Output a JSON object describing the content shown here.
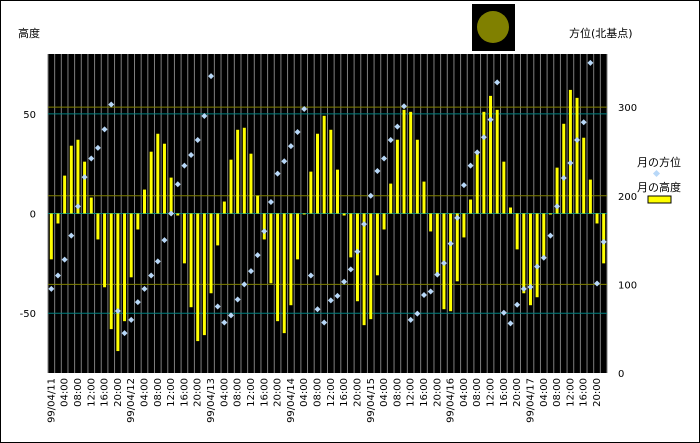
{
  "chart_data": {
    "type": "bar+scatter",
    "left_axis_label": "高度",
    "right_axis_label": "方位(北基点)",
    "left_ylim": [
      -80,
      80
    ],
    "left_ticks": [
      50,
      0,
      -50
    ],
    "right_ylim": [
      0,
      360
    ],
    "right_ticks": [
      300,
      200,
      100,
      0
    ],
    "legend": {
      "azimuth_label": "月の方位",
      "altitude_label": "月の高度"
    },
    "colors": {
      "plot_bg": "#000000",
      "bar": "#ffff00",
      "azimuth_point": "#b8d8f8",
      "gridline_vertical": "#7f7f7f",
      "gridline_olive": "#808000",
      "gridline_teal": "#008080",
      "moon_icon": "#808000"
    },
    "x_tick_labels": [
      "99/04/11",
      "04:00",
      "08:00",
      "12:00",
      "16:00",
      "20:00",
      "99/04/12",
      "04:00",
      "08:00",
      "12:00",
      "16:00",
      "20:00",
      "99/04/13",
      "04:00",
      "08:00",
      "12:00",
      "16:00",
      "20:00",
      "99/04/14",
      "04:00",
      "08:00",
      "12:00",
      "16:00",
      "20:00",
      "99/04/15",
      "04:00",
      "08:00",
      "12:00",
      "16:00",
      "20:00",
      "99/04/16",
      "04:00",
      "08:00",
      "12:00",
      "16:00",
      "20:00",
      "99/04/17",
      "04:00",
      "08:00",
      "12:00",
      "16:00",
      "20:00"
    ],
    "interval_hours": 2,
    "altitude_deg": [
      -23,
      -5,
      19,
      34,
      37,
      26,
      8,
      -13,
      -37,
      -58,
      -69,
      -54,
      -32,
      -8,
      12,
      31,
      40,
      35,
      18,
      -1,
      -25,
      -47,
      -64,
      -61,
      -40,
      -16,
      6,
      27,
      42,
      43,
      30,
      9,
      -13,
      -35,
      -54,
      -60,
      -46,
      -23,
      0,
      21,
      40,
      49,
      42,
      22,
      -1,
      -22,
      -44,
      -56,
      -53,
      -31,
      -8,
      15,
      37,
      52,
      51,
      37,
      16,
      -9,
      -31,
      -48,
      -49,
      -34,
      -12,
      7,
      31,
      51,
      59,
      52,
      26,
      3,
      -18,
      -40,
      -46,
      -42,
      -22,
      0,
      23,
      45,
      62,
      58,
      38,
      17,
      -5,
      -25
    ],
    "azimuth_deg": [
      95,
      110,
      128,
      155,
      188,
      221,
      242,
      254,
      275,
      303,
      70,
      45,
      60,
      80,
      95,
      110,
      126,
      150,
      180,
      213,
      234,
      246,
      263,
      290,
      335,
      75,
      57,
      65,
      83,
      100,
      115,
      133,
      160,
      193,
      225,
      239,
      256,
      272,
      298,
      110,
      72,
      57,
      82,
      87,
      103,
      117,
      137,
      168,
      200,
      228,
      242,
      263,
      278,
      301,
      60,
      67,
      88,
      92,
      111,
      124,
      146,
      175,
      212,
      234,
      249,
      266,
      286,
      328,
      68,
      56,
      77,
      95,
      97,
      120,
      130,
      155,
      188,
      220,
      237,
      263,
      283,
      350,
      101,
      148
    ]
  }
}
